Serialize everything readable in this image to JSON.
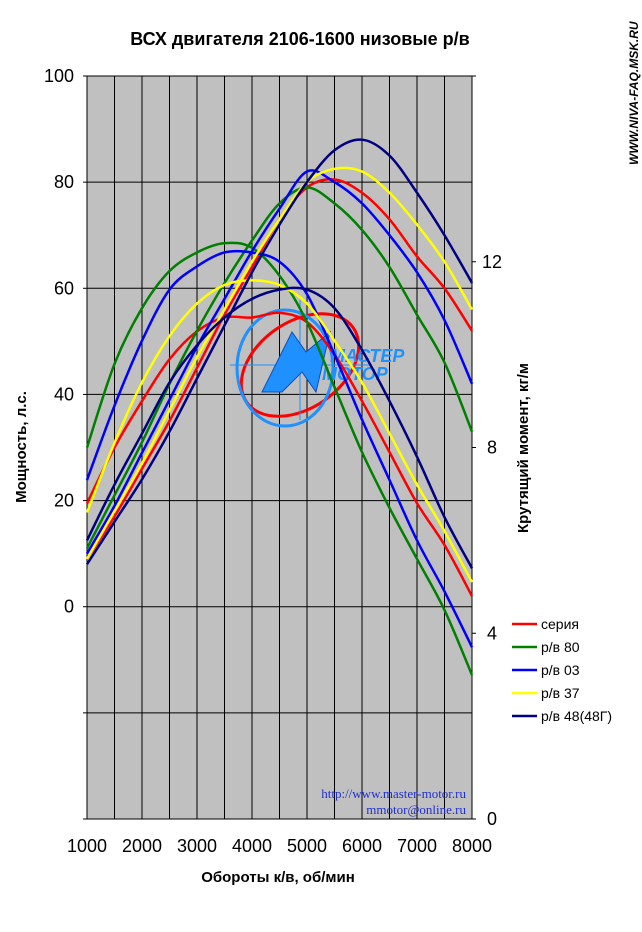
{
  "chart_data": {
    "type": "line",
    "title": "ВСХ двигателя 2106-1600 низовые р/в",
    "xlabel": "Обороты к/в, об/мин",
    "ylabel_left": "Мощность, л.с.",
    "ylabel_right": "Крутящий момент, кг/м",
    "xlim": [
      1000,
      8000
    ],
    "ylim_left": [
      -40,
      100
    ],
    "ylim_right": [
      0,
      16
    ],
    "grid": true,
    "legend_position": "right",
    "x_ticks": [
      "1000",
      "2000",
      "3000",
      "4000",
      "5000",
      "6000",
      "7000",
      "8000"
    ],
    "y_left_ticks": [
      "100",
      "80",
      "60",
      "40",
      "20",
      "0"
    ],
    "y_right_ticks": [
      "12",
      "8",
      "4",
      "0"
    ],
    "series": [
      {
        "name": "серия",
        "color": "#ff0000",
        "power": {
          "x": [
            1000,
            1500,
            2000,
            2500,
            3000,
            3500,
            4000,
            4500,
            5000,
            5500,
            6000,
            6500,
            7000,
            7500,
            8000
          ],
          "y": [
            9,
            17,
            26,
            35,
            45,
            55,
            64,
            73,
            79,
            80.5,
            78,
            73,
            66,
            60,
            52
          ]
        },
        "torque": {
          "x": [
            1000,
            1500,
            2000,
            2500,
            3000,
            3500,
            4000,
            4500,
            5000,
            5500,
            6000,
            6500,
            7000,
            7500,
            8000
          ],
          "y": [
            6.8,
            8.0,
            9.0,
            9.9,
            10.5,
            10.8,
            10.8,
            10.9,
            10.7,
            10.0,
            9.0,
            7.9,
            6.8,
            5.9,
            4.8
          ]
        }
      },
      {
        "name": "р/в 80",
        "color": "#008000",
        "power": {
          "x": [
            1000,
            1500,
            2000,
            2500,
            3000,
            3500,
            4000,
            4500,
            5000,
            5500,
            6000,
            6500,
            7000,
            7500,
            8000
          ],
          "y": [
            11,
            21,
            31,
            42,
            52,
            61,
            69,
            76,
            79,
            76,
            71,
            64,
            55,
            46,
            33
          ]
        },
        "torque": {
          "x": [
            1000,
            1500,
            2000,
            2500,
            3000,
            3500,
            4000,
            4500,
            5000,
            5500,
            6000,
            6500,
            7000,
            7500,
            8000
          ],
          "y": [
            8.0,
            9.8,
            11.0,
            11.8,
            12.2,
            12.4,
            12.3,
            11.7,
            10.7,
            9.3,
            7.9,
            6.7,
            5.6,
            4.5,
            3.1
          ]
        }
      },
      {
        "name": "р/в 03",
        "color": "#0000ff",
        "power": {
          "x": [
            1000,
            1500,
            2000,
            2500,
            3000,
            3500,
            4000,
            4500,
            5000,
            5500,
            6000,
            6500,
            7000,
            7500,
            8000
          ],
          "y": [
            10,
            19,
            29,
            39,
            49,
            58,
            67,
            75,
            82,
            80,
            76,
            70,
            63,
            54,
            42
          ]
        },
        "torque": {
          "x": [
            1000,
            1500,
            2000,
            2500,
            3000,
            3500,
            4000,
            4500,
            5000,
            5500,
            6000,
            6500,
            7000,
            7500,
            8000
          ],
          "y": [
            7.3,
            8.9,
            10.3,
            11.4,
            11.9,
            12.2,
            12.2,
            12.0,
            11.3,
            10.0,
            8.6,
            7.3,
            6.0,
            4.9,
            3.7
          ]
        }
      },
      {
        "name": "р/в 37",
        "color": "#ffff00",
        "power": {
          "x": [
            1000,
            1500,
            2000,
            2500,
            3000,
            3500,
            4000,
            4500,
            5000,
            5500,
            6000,
            6500,
            7000,
            7500,
            8000
          ],
          "y": [
            9,
            18,
            27,
            37,
            47,
            56,
            65,
            73,
            80,
            82.5,
            82,
            78,
            72,
            65,
            56
          ]
        },
        "torque": {
          "x": [
            1000,
            1500,
            2000,
            2500,
            3000,
            3500,
            4000,
            4500,
            5000,
            5500,
            6000,
            6500,
            7000,
            7500,
            8000
          ],
          "y": [
            6.6,
            8.1,
            9.4,
            10.4,
            11.1,
            11.5,
            11.6,
            11.5,
            11.1,
            10.3,
            9.4,
            8.3,
            7.2,
            6.2,
            5.1
          ]
        }
      },
      {
        "name": "р/в 48(48Г)",
        "color": "#000080",
        "power": {
          "x": [
            1000,
            1500,
            2000,
            2500,
            3000,
            3500,
            4000,
            4500,
            5000,
            5500,
            6000,
            6500,
            7000,
            7500,
            8000
          ],
          "y": [
            8,
            16,
            24,
            33,
            43,
            53,
            63,
            72,
            80,
            86,
            88,
            85,
            78,
            70,
            61
          ]
        },
        "torque": {
          "x": [
            1000,
            1500,
            2000,
            2500,
            3000,
            3500,
            4000,
            4500,
            5000,
            5500,
            6000,
            6500,
            7000,
            7500,
            8000
          ],
          "y": [
            6.0,
            7.2,
            8.3,
            9.4,
            10.2,
            10.8,
            11.2,
            11.4,
            11.4,
            11.0,
            10.1,
            9.0,
            7.8,
            6.5,
            5.4
          ]
        }
      }
    ]
  },
  "watermark": "WWW.NIVA-FAQ.MSK.RU",
  "credit": {
    "url": "http://www.master-motor.ru",
    "email": "mmotor@online.ru"
  },
  "logo": {
    "text_top": "МАСТЕР",
    "text_bottom": "МОТОР"
  },
  "colors": {
    "plot_background": "#c0c0c0",
    "logo_blue": "#1e90ff",
    "logo_red": "#ff0000",
    "credit": "#1f2fcc"
  }
}
